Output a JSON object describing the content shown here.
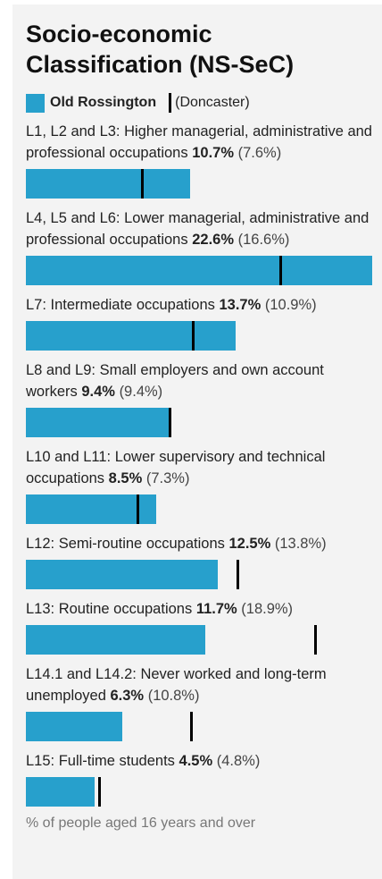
{
  "chart_data": {
    "type": "bar",
    "title": "Socio-economic Classification (NS-SeC)",
    "categories": [
      "L1, L2 and L3: Higher managerial, administrative and professional occupations",
      "L4, L5 and L6: Lower managerial, administrative and professional occupations",
      "L7: Intermediate occupations",
      "L8 and L9: Small employers and own account workers",
      "L10 and L11: Lower supervisory and technical occupations",
      "L12: Semi-routine occupations",
      "L13: Routine occupations",
      "L14.1 and L14.2: Never worked and long-term unemployed",
      "L15: Full-time students"
    ],
    "series": [
      {
        "name": "Old Rossington",
        "color": "#27a0cc",
        "values": [
          10.7,
          22.6,
          13.7,
          9.4,
          8.5,
          12.5,
          11.7,
          6.3,
          4.5
        ],
        "value_labels": [
          "10.7%",
          "22.6%",
          "13.7%",
          "9.4%",
          "8.5%",
          "12.5%",
          "11.7%",
          "6.3%",
          "4.5%"
        ]
      },
      {
        "name": "(Doncaster)",
        "color": "#000000",
        "values": [
          7.6,
          16.6,
          10.9,
          9.4,
          7.3,
          13.8,
          18.9,
          10.8,
          4.8
        ],
        "value_labels": [
          "(7.6%)",
          "(16.6%)",
          "(10.9%)",
          "(9.4%)",
          "(7.3%)",
          "(13.8%)",
          "(18.9%)",
          "(10.8%)",
          "(4.8%)"
        ]
      }
    ],
    "footnote": "% of people aged 16 years and over"
  }
}
